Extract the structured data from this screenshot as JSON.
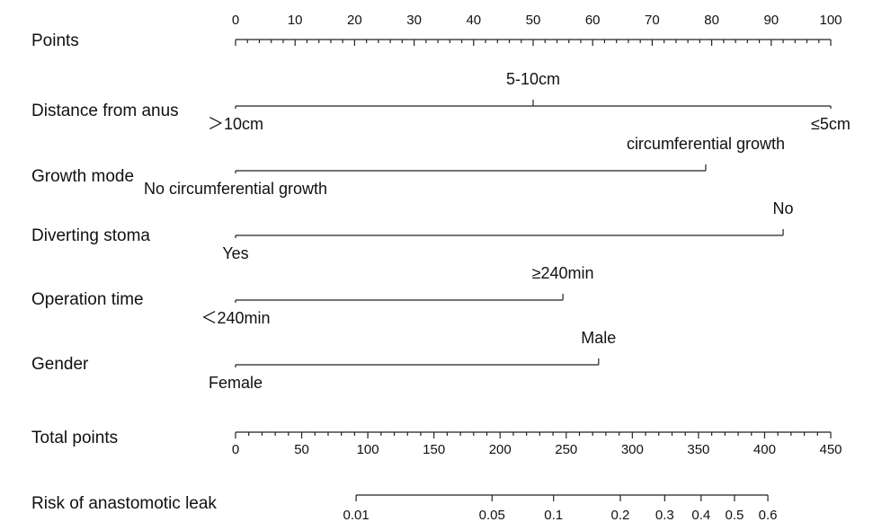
{
  "chart_data": {
    "type": "nomogram",
    "points_axis": {
      "label": "Points",
      "xlim": [
        0,
        100
      ],
      "xticks": [
        0,
        10,
        20,
        30,
        40,
        50,
        60,
        70,
        80,
        90,
        100
      ],
      "minor_ticks": [
        2,
        4,
        6,
        8,
        12,
        14,
        16,
        18,
        22,
        24,
        26,
        28,
        32,
        34,
        36,
        38,
        42,
        44,
        46,
        48,
        52,
        54,
        56,
        58,
        62,
        64,
        66,
        68,
        72,
        74,
        76,
        78,
        82,
        84,
        86,
        88,
        92,
        94,
        96,
        98
      ]
    },
    "variables": [
      {
        "name": "Distance from anus",
        "levels": [
          {
            "label": "＞10cm",
            "points": 0
          },
          {
            "label": "5-10cm",
            "points": 50
          },
          {
            "label": "≤5cm",
            "points": 100
          }
        ]
      },
      {
        "name": "Growth mode",
        "levels": [
          {
            "label": "No circumferential growth",
            "points": 0
          },
          {
            "label": "circumferential growth",
            "points": 79
          }
        ]
      },
      {
        "name": "Diverting stoma",
        "levels": [
          {
            "label": "Yes",
            "points": 0
          },
          {
            "label": "No",
            "points": 92
          }
        ]
      },
      {
        "name": "Operation time",
        "levels": [
          {
            "label": "＜240min",
            "points": 0
          },
          {
            "label": "≥240min",
            "points": 55
          }
        ]
      },
      {
        "name": "Gender",
        "levels": [
          {
            "label": "Female",
            "points": 0
          },
          {
            "label": "Male",
            "points": 61
          }
        ]
      }
    ],
    "total_axis": {
      "label": "Total points",
      "xlim": [
        0,
        450
      ],
      "xticks": [
        0,
        50,
        100,
        150,
        200,
        250,
        300,
        350,
        400,
        450
      ],
      "minor_ticks": [
        10,
        20,
        30,
        40,
        60,
        70,
        80,
        90,
        110,
        120,
        130,
        140,
        160,
        170,
        180,
        190,
        210,
        220,
        230,
        240,
        260,
        270,
        280,
        290,
        310,
        320,
        330,
        340,
        360,
        370,
        380,
        390,
        410,
        420,
        430,
        440
      ]
    },
    "risk_axis": {
      "label": "Risk of anastomotic leak",
      "scale": "logit",
      "xlim": [
        0.00233,
        0.763
      ],
      "xticks": [
        0.01,
        0.05,
        0.1,
        0.2,
        0.3,
        0.4,
        0.5,
        0.6
      ]
    }
  }
}
